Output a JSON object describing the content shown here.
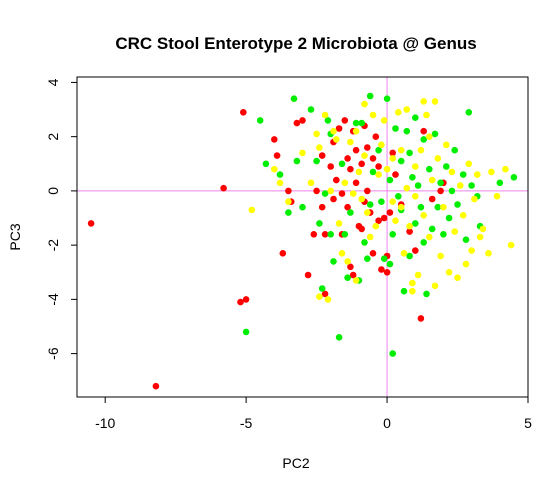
{
  "chart_data": {
    "type": "scatter",
    "title": "CRC Stool Enterotype 2 Microbiota @ Genus",
    "xlabel": "PC2",
    "ylabel": "PC3",
    "xlim": [
      -11,
      5
    ],
    "ylim": [
      -7.6,
      4.2
    ],
    "xticks": [
      -10,
      -5,
      0,
      5
    ],
    "yticks": [
      -6,
      -4,
      -2,
      0,
      2,
      4
    ],
    "reference_lines": {
      "x": 0,
      "y": 0,
      "color": "#ee82ee"
    },
    "colors": {
      "red": "#ff0000",
      "green": "#00ee00",
      "yellow": "#ffff00"
    },
    "series": [
      {
        "color": "red",
        "points": [
          [
            -10.5,
            -1.2
          ],
          [
            -8.2,
            -7.2
          ],
          [
            -5.8,
            0.1
          ],
          [
            -5.2,
            -4.1
          ],
          [
            -5.0,
            -4.0
          ],
          [
            -5.1,
            2.9
          ],
          [
            -4.0,
            1.9
          ],
          [
            -3.9,
            1.3
          ],
          [
            -3.7,
            -2.3
          ],
          [
            -3.5,
            0.0
          ],
          [
            -3.4,
            -0.4
          ],
          [
            -3.2,
            2.5
          ],
          [
            -3.0,
            2.6
          ],
          [
            -2.8,
            -3.1
          ],
          [
            -2.6,
            -1.6
          ],
          [
            -2.5,
            0.0
          ],
          [
            -2.3,
            1.3
          ],
          [
            -2.3,
            -0.6
          ],
          [
            -2.2,
            -1.6
          ],
          [
            -2.2,
            -3.8
          ],
          [
            -2.0,
            0.9
          ],
          [
            -1.9,
            1.8
          ],
          [
            -1.9,
            -0.3
          ],
          [
            -1.8,
            0.4
          ],
          [
            -1.7,
            2.3
          ],
          [
            -1.6,
            -0.1
          ],
          [
            -1.6,
            -1.6
          ],
          [
            -1.5,
            2.6
          ],
          [
            -1.4,
            1.2
          ],
          [
            -1.4,
            -0.6
          ],
          [
            -1.3,
            0.8
          ],
          [
            -1.3,
            -2.8
          ],
          [
            -1.2,
            2.2
          ],
          [
            -1.2,
            -3.1
          ],
          [
            -1.1,
            1.5
          ],
          [
            -1.1,
            0.3
          ],
          [
            -1.0,
            -1.3
          ],
          [
            -0.9,
            1.0
          ],
          [
            -0.9,
            -1.4
          ],
          [
            -0.8,
            2.4
          ],
          [
            -0.8,
            -0.4
          ],
          [
            -0.7,
            1.6
          ],
          [
            -0.7,
            0.0
          ],
          [
            -0.6,
            -0.8
          ],
          [
            -0.5,
            1.2
          ],
          [
            -0.5,
            -2.3
          ],
          [
            -0.4,
            2.0
          ],
          [
            -0.3,
            -1.1
          ],
          [
            -0.3,
            0.9
          ],
          [
            -0.2,
            -2.9
          ],
          [
            -0.1,
            -1.0
          ],
          [
            0.0,
            -2.4
          ],
          [
            0.0,
            -3.0
          ],
          [
            0.1,
            -0.8
          ],
          [
            0.2,
            1.4
          ],
          [
            0.3,
            0.6
          ],
          [
            0.5,
            -0.5
          ],
          [
            0.8,
            -1.5
          ],
          [
            1.0,
            -2.2
          ],
          [
            1.2,
            -4.7
          ],
          [
            1.3,
            2.2
          ],
          [
            1.6,
            -0.3
          ],
          [
            1.9,
            0.0
          ],
          [
            2.0,
            0.3
          ]
        ]
      },
      {
        "color": "green",
        "points": [
          [
            -5.0,
            -5.2
          ],
          [
            -4.5,
            2.6
          ],
          [
            -4.3,
            1.0
          ],
          [
            -3.8,
            0.6
          ],
          [
            -3.5,
            -0.8
          ],
          [
            -3.3,
            3.4
          ],
          [
            -3.2,
            1.1
          ],
          [
            -3.0,
            -0.6
          ],
          [
            -2.7,
            3.0
          ],
          [
            -2.5,
            1.1
          ],
          [
            -2.4,
            -1.2
          ],
          [
            -2.3,
            -3.6
          ],
          [
            -2.2,
            -0.1
          ],
          [
            -2.1,
            2.6
          ],
          [
            -2.0,
            -1.6
          ],
          [
            -2.0,
            2.1
          ],
          [
            -1.9,
            -2.6
          ],
          [
            -1.7,
            -5.4
          ],
          [
            -1.6,
            1.0
          ],
          [
            -1.5,
            -1.6
          ],
          [
            -1.4,
            -3.2
          ],
          [
            -1.3,
            -0.8
          ],
          [
            -1.1,
            2.5
          ],
          [
            -1.0,
            -3.3
          ],
          [
            -0.9,
            2.5
          ],
          [
            -0.8,
            -1.9
          ],
          [
            -0.7,
            -2.5
          ],
          [
            -0.6,
            3.5
          ],
          [
            -0.6,
            -0.5
          ],
          [
            -0.5,
            0.7
          ],
          [
            -0.3,
            1.5
          ],
          [
            -0.2,
            -0.4
          ],
          [
            -0.1,
            -2.5
          ],
          [
            0.0,
            3.4
          ],
          [
            0.1,
            -2.7
          ],
          [
            0.1,
            0.4
          ],
          [
            0.2,
            -1.6
          ],
          [
            0.2,
            -6.0
          ],
          [
            0.3,
            2.3
          ],
          [
            0.4,
            -0.2
          ],
          [
            0.5,
            1.1
          ],
          [
            0.5,
            -0.7
          ],
          [
            0.6,
            -3.7
          ],
          [
            0.7,
            2.2
          ],
          [
            0.8,
            -2.4
          ],
          [
            0.8,
            1.4
          ],
          [
            0.9,
            0.5
          ],
          [
            1.0,
            -1.2
          ],
          [
            1.0,
            2.7
          ],
          [
            1.1,
            0.2
          ],
          [
            1.2,
            -0.6
          ],
          [
            1.3,
            -1.9
          ],
          [
            1.3,
            1.9
          ],
          [
            1.4,
            -3.8
          ],
          [
            1.5,
            0.8
          ],
          [
            1.6,
            -1.4
          ],
          [
            1.7,
            2.1
          ],
          [
            1.8,
            -0.6
          ],
          [
            1.9,
            0.3
          ],
          [
            2.0,
            -1.6
          ],
          [
            2.1,
            0.9
          ],
          [
            2.2,
            -1.0
          ],
          [
            2.3,
            0.0
          ],
          [
            2.4,
            1.5
          ],
          [
            2.5,
            -0.5
          ],
          [
            2.7,
            0.6
          ],
          [
            2.8,
            -1.8
          ],
          [
            2.9,
            2.9
          ],
          [
            3.0,
            0.2
          ],
          [
            3.2,
            -0.2
          ],
          [
            3.3,
            -1.3
          ],
          [
            4.0,
            0.3
          ],
          [
            4.5,
            0.5
          ]
        ]
      },
      {
        "color": "yellow",
        "points": [
          [
            -4.8,
            -0.7
          ],
          [
            -4.0,
            0.8
          ],
          [
            -3.8,
            0.3
          ],
          [
            -3.5,
            -0.4
          ],
          [
            -3.0,
            1.4
          ],
          [
            -2.7,
            0.3
          ],
          [
            -2.5,
            2.1
          ],
          [
            -2.4,
            1.6
          ],
          [
            -2.2,
            2.8
          ],
          [
            -2.1,
            -4.0
          ],
          [
            -2.0,
            0.0
          ],
          [
            -1.9,
            2.2
          ],
          [
            -1.8,
            1.9
          ],
          [
            -1.7,
            -1.2
          ],
          [
            -1.6,
            -2.3
          ],
          [
            -1.5,
            0.3
          ],
          [
            -1.4,
            -2.6
          ],
          [
            -1.3,
            1.8
          ],
          [
            -1.2,
            -0.1
          ],
          [
            -1.1,
            2.2
          ],
          [
            -1.1,
            -3.3
          ],
          [
            -1.0,
            0.7
          ],
          [
            -0.9,
            -0.3
          ],
          [
            -0.8,
            1.3
          ],
          [
            -0.7,
            -0.8
          ],
          [
            -0.6,
            -1.7
          ],
          [
            -0.5,
            2.8
          ],
          [
            -0.4,
            -1.3
          ],
          [
            -0.3,
            0.6
          ],
          [
            -0.2,
            1.7
          ],
          [
            -0.1,
            2.6
          ],
          [
            0.0,
            0.8
          ],
          [
            0.2,
            -0.4
          ],
          [
            0.2,
            1.2
          ],
          [
            0.3,
            -1.1
          ],
          [
            0.4,
            2.9
          ],
          [
            0.5,
            -0.6
          ],
          [
            0.5,
            1.5
          ],
          [
            0.6,
            -2.3
          ],
          [
            0.7,
            0.1
          ],
          [
            0.7,
            3.0
          ],
          [
            0.8,
            -1.3
          ],
          [
            0.9,
            -3.4
          ],
          [
            1.0,
            0.9
          ],
          [
            1.0,
            -0.2
          ],
          [
            1.1,
            -3.1
          ],
          [
            1.2,
            1.5
          ],
          [
            1.3,
            -0.9
          ],
          [
            1.3,
            3.3
          ],
          [
            1.5,
            2.0
          ],
          [
            1.5,
            -1.7
          ],
          [
            1.6,
            0.4
          ],
          [
            1.7,
            -3.5
          ],
          [
            1.8,
            1.2
          ],
          [
            1.9,
            -2.4
          ],
          [
            2.0,
            -0.6
          ],
          [
            2.1,
            1.7
          ],
          [
            2.2,
            -3.0
          ],
          [
            2.3,
            0.7
          ],
          [
            2.4,
            -1.5
          ],
          [
            2.5,
            -3.2
          ],
          [
            2.6,
            0.2
          ],
          [
            2.7,
            -0.9
          ],
          [
            2.8,
            -2.7
          ],
          [
            2.9,
            1.0
          ],
          [
            3.0,
            -2.2
          ],
          [
            3.1,
            -0.3
          ],
          [
            3.2,
            0.6
          ],
          [
            3.4,
            -1.4
          ],
          [
            3.6,
            -2.3
          ],
          [
            3.7,
            0.7
          ],
          [
            3.9,
            -0.2
          ],
          [
            4.2,
            0.8
          ],
          [
            4.4,
            -2.0
          ],
          [
            -0.8,
            3.2
          ],
          [
            1.4,
            2.8
          ],
          [
            0.9,
            -3.7
          ],
          [
            -2.4,
            -3.9
          ],
          [
            1.7,
            3.3
          ],
          [
            3.3,
            -1.7
          ]
        ]
      }
    ]
  }
}
